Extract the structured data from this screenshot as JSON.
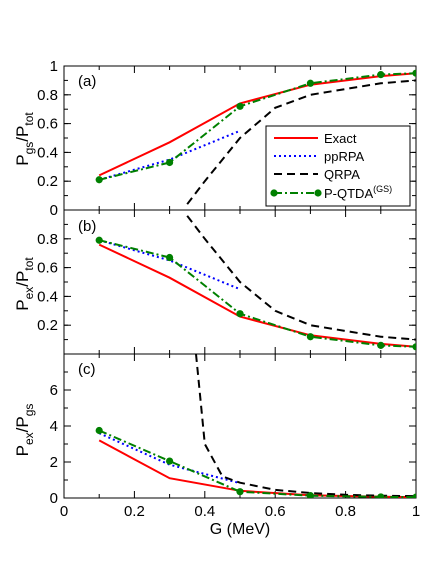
{
  "chart_data": [
    {
      "panel": "(a)",
      "type": "line",
      "ylabel_main": "P",
      "ylabel_sub1": "gs",
      "ylabel_mid": "/P",
      "ylabel_sub2": "tot",
      "xlim": [
        0,
        1
      ],
      "ylim": [
        0,
        1
      ],
      "yticks": [
        0,
        0.2,
        0.4,
        0.6,
        0.8,
        1
      ],
      "ytick_labels": [
        "0",
        "0.2",
        "0.4",
        "0.6",
        "0.8",
        "1"
      ],
      "legend": {
        "placement": "right",
        "entries": [
          {
            "name": "Exact",
            "color": "#ff0000",
            "dash": "solid",
            "marker": false
          },
          {
            "name": "ppRPA",
            "color": "#0000ff",
            "dash": "dotted",
            "marker": false
          },
          {
            "name": "QRPA",
            "color": "#000000",
            "dash": "dashed",
            "marker": false
          },
          {
            "name": "P-QTDA",
            "sup": "(GS)",
            "color": "#008000",
            "dash": "dashdot",
            "marker": true
          }
        ]
      },
      "series": [
        {
          "key": "exact",
          "color": "#ff0000",
          "dash": "solid",
          "x": [
            0.1,
            0.3,
            0.5,
            0.7,
            0.9,
            1.0
          ],
          "y": [
            0.24,
            0.47,
            0.74,
            0.87,
            0.93,
            0.95
          ]
        },
        {
          "key": "pprpa",
          "color": "#0000ff",
          "dash": "dotted",
          "x": [
            0.1,
            0.3,
            0.5
          ],
          "y": [
            0.21,
            0.35,
            0.55
          ]
        },
        {
          "key": "qrpa",
          "color": "#000000",
          "dash": "dashed",
          "x": [
            0.35,
            0.4,
            0.5,
            0.6,
            0.7,
            0.8,
            0.9,
            1.0
          ],
          "y": [
            0.04,
            0.2,
            0.5,
            0.71,
            0.8,
            0.84,
            0.88,
            0.9
          ]
        },
        {
          "key": "pqtda",
          "color": "#008000",
          "dash": "dashdot",
          "marker": true,
          "x": [
            0.1,
            0.3,
            0.5,
            0.7,
            0.9,
            1.0
          ],
          "y": [
            0.21,
            0.33,
            0.72,
            0.88,
            0.94,
            0.95
          ]
        }
      ]
    },
    {
      "panel": "(b)",
      "type": "line",
      "ylabel_main": "P",
      "ylabel_sub1": "ex",
      "ylabel_mid": "/P",
      "ylabel_sub2": "tot",
      "xlim": [
        0,
        1
      ],
      "ylim": [
        0,
        1
      ],
      "yticks": [
        0.2,
        0.4,
        0.6,
        0.8
      ],
      "ytick_labels": [
        "0.2",
        "0.4",
        "0.6",
        "0.8"
      ],
      "series": [
        {
          "key": "exact",
          "color": "#ff0000",
          "dash": "solid",
          "x": [
            0.1,
            0.3,
            0.5,
            0.7,
            0.9,
            1.0
          ],
          "y": [
            0.76,
            0.53,
            0.26,
            0.13,
            0.07,
            0.05
          ]
        },
        {
          "key": "pprpa",
          "color": "#0000ff",
          "dash": "dotted",
          "x": [
            0.1,
            0.3,
            0.5
          ],
          "y": [
            0.79,
            0.65,
            0.45
          ]
        },
        {
          "key": "qrpa",
          "color": "#000000",
          "dash": "dashed",
          "x": [
            0.35,
            0.4,
            0.5,
            0.6,
            0.7,
            0.8,
            0.9,
            1.0
          ],
          "y": [
            0.96,
            0.8,
            0.5,
            0.3,
            0.2,
            0.16,
            0.12,
            0.1
          ]
        },
        {
          "key": "pqtda",
          "color": "#008000",
          "dash": "dashdot",
          "marker": true,
          "x": [
            0.1,
            0.3,
            0.5,
            0.7,
            0.9,
            1.0
          ],
          "y": [
            0.79,
            0.67,
            0.28,
            0.12,
            0.06,
            0.05
          ]
        }
      ]
    },
    {
      "panel": "(c)",
      "type": "line",
      "ylabel_main": "P",
      "ylabel_sub1": "ex",
      "ylabel_mid": "/P",
      "ylabel_sub2": "gs",
      "xlabel": "G (MeV)",
      "xlim": [
        0,
        1
      ],
      "ylim": [
        0,
        8
      ],
      "yticks": [
        0,
        2,
        4,
        6
      ],
      "ytick_labels": [
        "0",
        "2",
        "4",
        "6"
      ],
      "xticks": [
        0,
        0.2,
        0.4,
        0.6,
        0.8,
        1
      ],
      "xtick_labels": [
        "0",
        "0.2",
        "0.4",
        "0.6",
        "0.8",
        "1"
      ],
      "series": [
        {
          "key": "exact",
          "color": "#ff0000",
          "dash": "solid",
          "x": [
            0.1,
            0.3,
            0.5,
            0.7,
            0.9,
            1.0
          ],
          "y": [
            3.2,
            1.1,
            0.4,
            0.15,
            0.07,
            0.05
          ]
        },
        {
          "key": "pprpa",
          "color": "#0000ff",
          "dash": "dotted",
          "x": [
            0.1,
            0.3,
            0.5
          ],
          "y": [
            3.6,
            1.85,
            0.82
          ]
        },
        {
          "key": "qrpa",
          "color": "#000000",
          "dash": "dashed",
          "x": [
            0.375,
            0.39,
            0.4,
            0.45,
            0.5,
            0.6,
            0.7,
            0.8,
            0.9,
            1.0
          ],
          "y": [
            8.0,
            5.0,
            3.0,
            1.2,
            0.85,
            0.45,
            0.28,
            0.18,
            0.13,
            0.1
          ]
        },
        {
          "key": "pqtda",
          "color": "#008000",
          "dash": "dashdot",
          "marker": true,
          "x": [
            0.1,
            0.3,
            0.5,
            0.7,
            0.9,
            1.0
          ],
          "y": [
            3.75,
            2.05,
            0.35,
            0.13,
            0.06,
            0.05
          ]
        }
      ]
    }
  ]
}
